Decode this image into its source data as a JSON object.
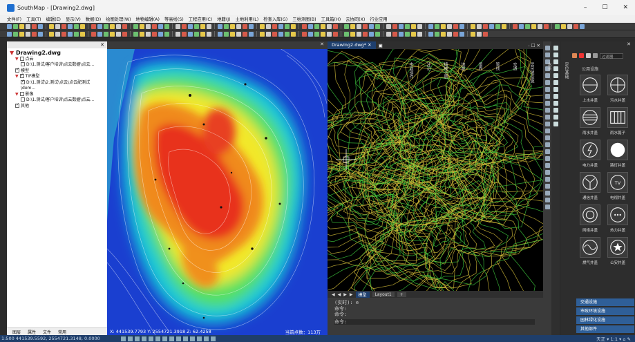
{
  "window": {
    "title": "SouthMap - [Drawing2.dwg]",
    "min": "–",
    "max": "☐",
    "close": "✕"
  },
  "menu": [
    "文件(F)",
    "工具(T)",
    "编辑(E)",
    "显示(V)",
    "数据(D)",
    "绘图处理(W)",
    "地物编辑(A)",
    "等高线(S)",
    "工程应用(C)",
    "地籍(J)",
    "土地利用(L)",
    "检查入库(G)",
    "三维测图(B)",
    "工具箱(H)",
    "云协同(X)",
    "行业应用"
  ],
  "toolbar": {
    "layer_value": "0"
  },
  "left_panel": {
    "close": "✕",
    "tree": {
      "root": "Drawing2.dwg",
      "items": [
        {
          "label": "点云",
          "indent": 1,
          "checked": false,
          "expand": "▼"
        },
        {
          "label": "D:\\1.测试/客户培训\\点云数据\\点云...",
          "indent": 2,
          "checked": false,
          "expand": ""
        },
        {
          "label": "模型",
          "indent": 1,
          "checked": true,
          "expand": ""
        },
        {
          "label": "TIF模型",
          "indent": 1,
          "checked": true,
          "expand": "▼"
        },
        {
          "label": "D:\\1.测试\\2.测试\\点云\\点云配测试\\dem...",
          "indent": 2,
          "checked": true,
          "expand": ""
        },
        {
          "label": "影像",
          "indent": 1,
          "checked": false,
          "expand": "▼"
        },
        {
          "label": "D:\\1.测试/客户培训\\点云数据\\点云...",
          "indent": 2,
          "checked": false,
          "expand": ""
        },
        {
          "label": "其他",
          "indent": 1,
          "checked": true,
          "expand": ""
        }
      ]
    },
    "tabs": [
      "图层",
      "属性",
      "文件",
      "常用"
    ]
  },
  "viewport1": {
    "close": "✕",
    "coords": "X: 441539.7793  Y: 2554721.3918  Z: 62.4258",
    "points": "当前点数：113万"
  },
  "viewport2": {
    "tab": "Drawing2.dwg*",
    "tab_close": "✕",
    "controls": "- ☐ ✕",
    "layout_tabs": [
      "模型",
      "Layout1",
      "+"
    ]
  },
  "command": {
    "lines": [
      "(实时): e",
      "命令:",
      "命令:"
    ],
    "prompt": "命令:"
  },
  "right_panel": {
    "close": "✕",
    "search_placeholder": "过滤器",
    "common": "公用设施",
    "categories": [
      "定位基础",
      "水系",
      "居民地设施",
      "交通",
      "管线",
      "境界",
      "地貌",
      "植被土质",
      "注记",
      "市政部件"
    ],
    "symbols": [
      {
        "label": "上水井盖",
        "sym": "circle-h"
      },
      {
        "label": "污水井盖",
        "sym": "circle-cross"
      },
      {
        "label": "雨水井盖",
        "sym": "circle-lines"
      },
      {
        "label": "雨水篦子",
        "sym": "grate"
      },
      {
        "label": "电力井盖",
        "sym": "circle-bolt"
      },
      {
        "label": "路灯井盖",
        "sym": "circle-fill"
      },
      {
        "label": "通信井盖",
        "sym": "circle-y"
      },
      {
        "label": "电视井盖",
        "sym": "circle-tv"
      },
      {
        "label": "网络井盖",
        "sym": "circle-ring"
      },
      {
        "label": "热力井盖",
        "sym": "circle-dots"
      },
      {
        "label": "燃气井盖",
        "sym": "circle-wave"
      },
      {
        "label": "公安井盖",
        "sym": "circle-star"
      }
    ],
    "list": [
      "交通设施",
      "市政环境设施",
      "园林绿化设施",
      "其他部件"
    ]
  },
  "status_bar": {
    "scale_coords": "1:500  441539.5592, 2554721.3148, 0.0000",
    "right": "天正  ▾ 1:1 ▾  ⌂ ✎"
  }
}
